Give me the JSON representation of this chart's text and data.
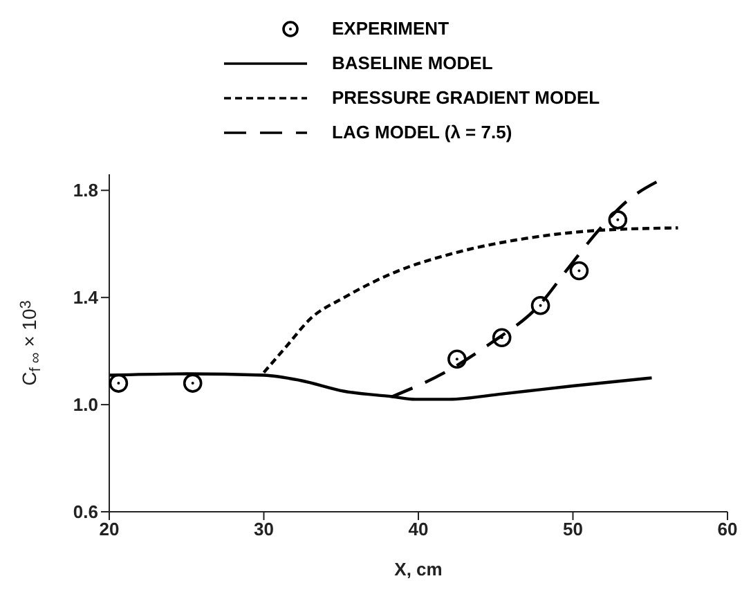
{
  "chart_data": {
    "type": "line",
    "xlabel": "X, cm",
    "ylabel": "C$_{f ∞}$ × 10$^{3}$",
    "xlim": [
      20,
      60
    ],
    "xticks": [
      20,
      30,
      40,
      50,
      60
    ],
    "ylim": [
      0.6,
      1.86
    ],
    "yticks": [
      0.6,
      {
        "value": 1.0,
        "label": "1.0"
      },
      1.4,
      1.8
    ],
    "grid": false,
    "legend": "top",
    "series": [
      {
        "name": "EXPERIMENT",
        "type": "scatter",
        "marker": "circle",
        "color": "#000000",
        "x": [
          20.6,
          25.4,
          42.5,
          45.4,
          47.9,
          50.4,
          52.9
        ],
        "values": [
          1.08,
          1.08,
          1.17,
          1.25,
          1.37,
          1.5,
          1.69
        ]
      },
      {
        "name": "BASELINE MODEL",
        "line_style": "solid",
        "color": "#000000",
        "x": [
          20,
          25,
          30,
          32.4,
          35.2,
          38.3,
          39.8,
          42,
          45.4,
          50,
          55.1
        ],
        "values": [
          1.11,
          1.115,
          1.11,
          1.09,
          1.05,
          1.03,
          1.02,
          1.02,
          1.04,
          1.07,
          1.1
        ]
      },
      {
        "name": "PRESSURE GRADIENT MODEL",
        "line_style": "dashed",
        "color": "#000000",
        "x": [
          30,
          31.5,
          33,
          35.2,
          38.3,
          42.6,
          46.9,
          51.5,
          56.8
        ],
        "values": [
          1.12,
          1.22,
          1.32,
          1.4,
          1.49,
          1.57,
          1.62,
          1.65,
          1.66
        ]
      },
      {
        "name": "LAG MODEL (λ = 7.5)",
        "line_style": "longdash",
        "color": "#000000",
        "x": [
          38.3,
          41.7,
          44.7,
          47.8,
          49.7,
          51.8,
          53.5,
          55.7
        ],
        "values": [
          1.03,
          1.12,
          1.23,
          1.37,
          1.51,
          1.66,
          1.76,
          1.84
        ]
      }
    ]
  }
}
